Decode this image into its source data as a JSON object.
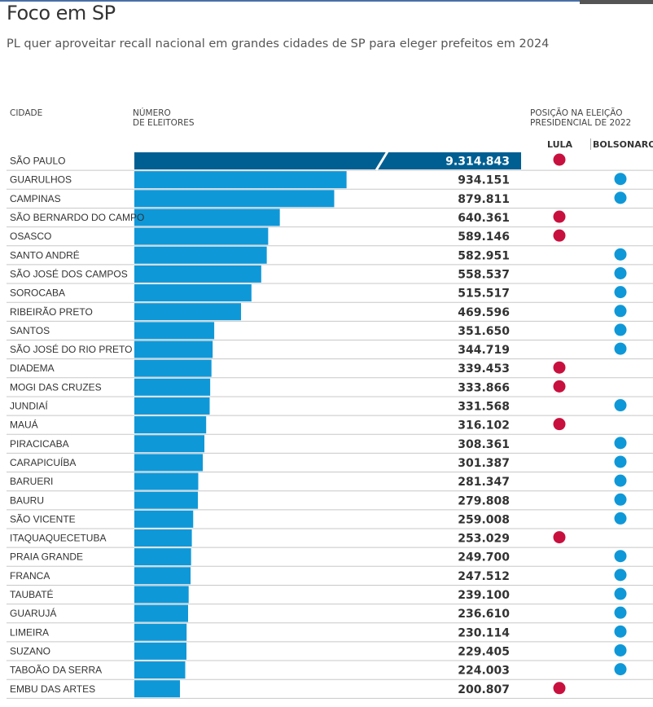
{
  "title": "Foco em SP",
  "subtitle": "PL quer aproveitar recall nacional em grandes cidades de SP para eleger prefeitos em 2024",
  "headers": {
    "city": "CIDADE",
    "voters_line1": "NÚMERO",
    "voters_line2": "DE ELEITORES",
    "position_line1": "POSIÇÃO NA ELEIÇÃO",
    "position_line2": "PRESIDENCIAL DE 2022",
    "lula": "LULA",
    "bolsonaro": "BOLSONARO"
  },
  "colors": {
    "bar": "#0f98d8",
    "bar_highlight": "#005f92",
    "lula": "#c8103e",
    "bolsonaro": "#0f98d8",
    "divider": "#c8c8c8"
  },
  "chart_data": {
    "type": "bar",
    "orientation": "horizontal",
    "title": "Foco em SP",
    "xlabel": "Número de eleitores",
    "ylabel": "Cidade",
    "xlim": [
      0,
      1000000
    ],
    "axis_break": true,
    "categories": [
      "SÃO PAULO",
      "GUARULHOS",
      "CAMPINAS",
      "SÃO BERNARDO DO CAMPO",
      "OSASCO",
      "SANTO ANDRÉ",
      "SÃO JOSÉ DOS CAMPOS",
      "SOROCABA",
      "RIBEIRÃO PRETO",
      "SANTOS",
      "SÃO JOSÉ DO RIO PRETO",
      "DIADEMA",
      "MOGI DAS CRUZES",
      "JUNDIAÍ",
      "MAUÁ",
      "PIRACICABA",
      "CARAPICUÍBA",
      "BARUERI",
      "BAURU",
      "SÃO VICENTE",
      "ITAQUAQUECETUBA",
      "PRAIA GRANDE",
      "FRANCA",
      "TAUBATÉ",
      "GUARUJÁ",
      "LIMEIRA",
      "SUZANO",
      "TABOÃO DA SERRA",
      "EMBU DAS ARTES"
    ],
    "values": [
      9314843,
      934151,
      879811,
      640361,
      589146,
      582951,
      558537,
      515517,
      469596,
      351650,
      344719,
      339453,
      333866,
      331568,
      316102,
      308361,
      301387,
      281347,
      279808,
      259008,
      253029,
      249700,
      247512,
      239100,
      236610,
      230114,
      229405,
      224003,
      200807
    ],
    "labels": [
      "9.314.843",
      "934.151",
      "879.811",
      "640.361",
      "589.146",
      "582.951",
      "558.537",
      "515.517",
      "469.596",
      "351.650",
      "344.719",
      "339.453",
      "333.866",
      "331.568",
      "316.102",
      "308.361",
      "301.387",
      "281.347",
      "279.808",
      "259.008",
      "253.029",
      "249.700",
      "247.512",
      "239.100",
      "236.610",
      "230.114",
      "229.405",
      "224.003",
      "200.807"
    ],
    "winner_2022": [
      "LULA",
      "BOLSONARO",
      "BOLSONARO",
      "LULA",
      "LULA",
      "BOLSONARO",
      "BOLSONARO",
      "BOLSONARO",
      "BOLSONARO",
      "BOLSONARO",
      "BOLSONARO",
      "LULA",
      "LULA",
      "BOLSONARO",
      "LULA",
      "BOLSONARO",
      "BOLSONARO",
      "BOLSONARO",
      "BOLSONARO",
      "BOLSONARO",
      "LULA",
      "BOLSONARO",
      "BOLSONARO",
      "BOLSONARO",
      "BOLSONARO",
      "BOLSONARO",
      "BOLSONARO",
      "BOLSONARO",
      "LULA"
    ]
  }
}
